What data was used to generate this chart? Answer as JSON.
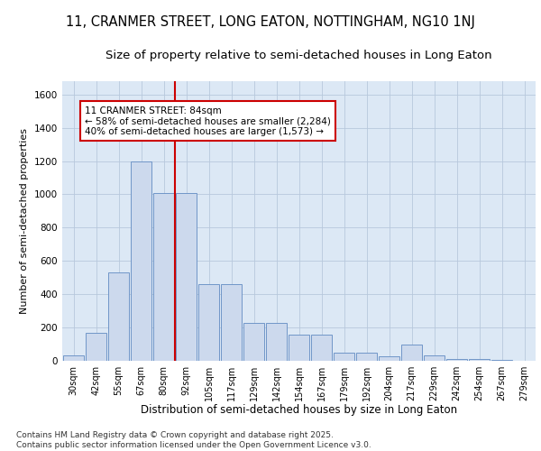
{
  "title_line1": "11, CRANMER STREET, LONG EATON, NOTTINGHAM, NG10 1NJ",
  "title_line2": "Size of property relative to semi-detached houses in Long Eaton",
  "xlabel": "Distribution of semi-detached houses by size in Long Eaton",
  "ylabel": "Number of semi-detached properties",
  "categories": [
    "30sqm",
    "42sqm",
    "55sqm",
    "67sqm",
    "80sqm",
    "92sqm",
    "105sqm",
    "117sqm",
    "129sqm",
    "142sqm",
    "154sqm",
    "167sqm",
    "179sqm",
    "192sqm",
    "204sqm",
    "217sqm",
    "229sqm",
    "242sqm",
    "254sqm",
    "267sqm",
    "279sqm"
  ],
  "values": [
    30,
    170,
    530,
    1200,
    1010,
    1010,
    460,
    460,
    230,
    230,
    155,
    155,
    50,
    50,
    25,
    100,
    30,
    10,
    10,
    5,
    0
  ],
  "bar_color": "#ccd9ed",
  "bar_edge_color": "#7096c8",
  "annotation_text": "11 CRANMER STREET: 84sqm\n← 58% of semi-detached houses are smaller (2,284)\n40% of semi-detached houses are larger (1,573) →",
  "annotation_box_color": "#ffffff",
  "annotation_box_edge": "#cc0000",
  "vline_x": 4.5,
  "vline_color": "#cc0000",
  "ylim": [
    0,
    1680
  ],
  "yticks": [
    0,
    200,
    400,
    600,
    800,
    1000,
    1200,
    1400,
    1600
  ],
  "grid_color": "#b8c8dc",
  "background_color": "#dce8f5",
  "fig_background": "#ffffff",
  "footer_text": "Contains HM Land Registry data © Crown copyright and database right 2025.\nContains public sector information licensed under the Open Government Licence v3.0.",
  "title_fontsize": 10.5,
  "subtitle_fontsize": 9.5,
  "tick_fontsize": 7,
  "ylabel_fontsize": 8,
  "xlabel_fontsize": 8.5,
  "annotation_fontsize": 7.5,
  "footer_fontsize": 6.5
}
